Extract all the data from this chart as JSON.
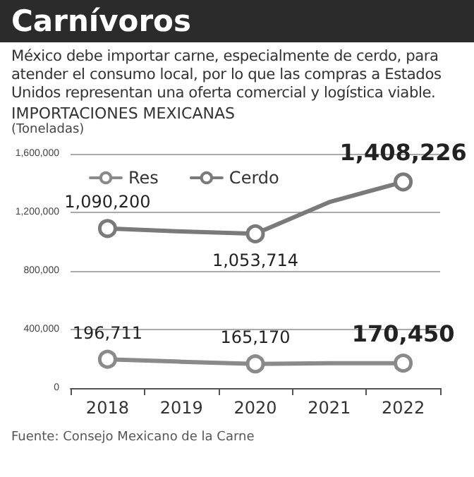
{
  "chart_data": {
    "type": "line",
    "title": "Carnívoros",
    "subtitle": "México debe importar carne, especialmente de cerdo, para atender el consumo local, por lo que las compras a Estados Unidos representan una oferta comercial y logística viable.",
    "annotations": [
      "IMPORTACIONES MEXICANAS",
      "Fuente: Consejo Mexicano de la Carne"
    ],
    "ylabel": "(Toneladas)",
    "categories": [
      "2018",
      "2019",
      "2020",
      "2021",
      "2022"
    ],
    "series": [
      {
        "name": "Res",
        "color": "#8a8a8a",
        "values": [
          196711,
          180000,
          165170,
          170000,
          170450
        ],
        "value_labels": [
          "196,711",
          null,
          "165,170",
          null,
          "170,450"
        ]
      },
      {
        "name": "Cerdo",
        "color": "#7a7a7a",
        "values": [
          1090200,
          1070000,
          1053714,
          1270000,
          1408226
        ],
        "value_labels": [
          "1,090,200",
          null,
          "1,053,714",
          null,
          "1,408,226"
        ]
      }
    ],
    "ylim": [
      0,
      1600000
    ],
    "yticks": [
      0,
      {
        "value": 400000,
        "label": "400,000"
      },
      {
        "value": 800000,
        "label": "800,000"
      },
      {
        "value": 1200000,
        "label": "1,200,000"
      },
      {
        "value": 1600000,
        "label": "1,600,000"
      }
    ],
    "grid": "y",
    "legend": "top left",
    "marker": "circle",
    "line_style": "solid"
  }
}
